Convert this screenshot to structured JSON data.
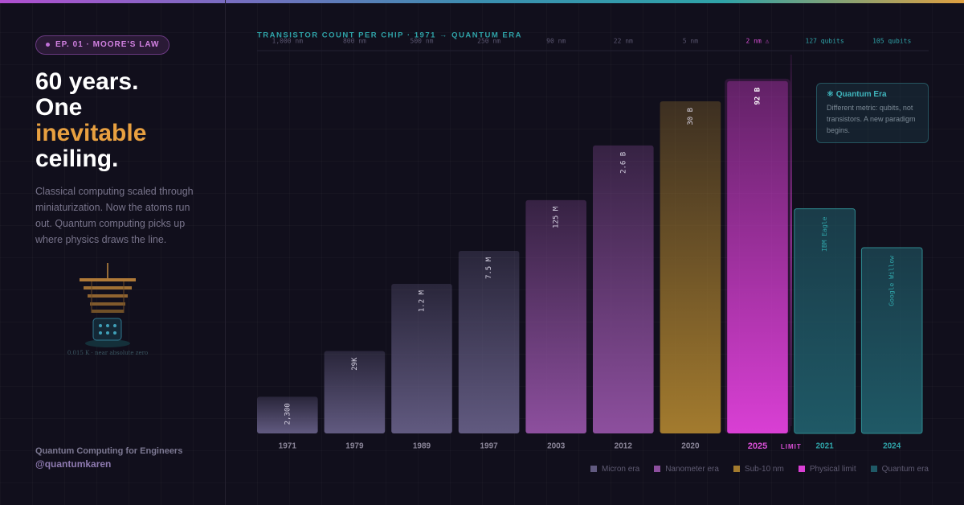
{
  "badge": "EP. 01 · MOORE'S LAW",
  "headline": {
    "line1": "60 years.",
    "line2": "One",
    "highlight": "inevitable",
    "line4": "ceiling."
  },
  "description": "Classical computing scaled through miniaturization. Now the atoms run out. Quantum computing picks up where physics draws the line.",
  "illustration_caption": "0.015 K · near absolute zero",
  "footer": {
    "series": "Quantum Computing for Engineers",
    "handle": "@quantumkaren"
  },
  "chart_data": {
    "type": "bar",
    "title": "TRANSISTOR COUNT PER CHIP · 1971 → QUANTUM ERA",
    "categories": [
      "1971",
      "1979",
      "1989",
      "1997",
      "2003",
      "2012",
      "2020",
      "2025",
      "2021",
      "2024"
    ],
    "nodes": [
      "1,000 nm",
      "800 nm",
      "500 nm",
      "250 nm",
      "90 nm",
      "22 nm",
      "5 nm",
      "2 nm ⚠",
      null,
      null
    ],
    "log_scale": true,
    "ylim": [
      300,
      100000000000
    ],
    "y2lim": [
      0,
      200
    ],
    "limit_label": "LIMIT",
    "annotation": {
      "title": "⚛ Quantum Era",
      "text": "Different metric: qubits, not transistors. A new paradigm begins."
    },
    "series": [
      {
        "name": "Micron era",
        "color": "#615a80",
        "text_color": "#8a8598",
        "values": [
          2300,
          29000,
          1200000,
          7500000,
          null,
          null,
          null,
          null,
          null,
          null
        ],
        "value_labels": [
          "2,300",
          "29K",
          "1.2 M",
          "7.5 M",
          null,
          null,
          null,
          null,
          null,
          null
        ]
      },
      {
        "name": "Nanometer era",
        "color": "#8d4f9e",
        "text_color": "#8a8598",
        "values": [
          null,
          null,
          null,
          null,
          125000000,
          2600000000,
          null,
          null,
          null,
          null
        ],
        "value_labels": [
          null,
          null,
          null,
          null,
          "125 M",
          "2.6 B",
          null,
          null,
          null,
          null
        ]
      },
      {
        "name": "Sub-10 nm",
        "color": "#a37b2e",
        "text_color": "#8a8598",
        "values": [
          null,
          null,
          null,
          null,
          null,
          null,
          30000000000,
          null,
          null,
          null
        ],
        "value_labels": [
          null,
          null,
          null,
          null,
          null,
          null,
          "30 B",
          null,
          null,
          null
        ]
      },
      {
        "name": "Physical limit",
        "color": "#d93fd4",
        "text_color": "#d94fd6",
        "values": [
          null,
          null,
          null,
          null,
          null,
          null,
          null,
          92000000000,
          null,
          null
        ],
        "value_labels": [
          null,
          null,
          null,
          null,
          null,
          null,
          null,
          "92 B",
          null,
          null
        ]
      },
      {
        "name": "Quantum era",
        "color": "#1f5966",
        "text_color": "#2fa3a8",
        "axis": "y2",
        "values": [
          null,
          null,
          null,
          null,
          null,
          null,
          null,
          null,
          127,
          105
        ],
        "value_labels": [
          null,
          null,
          null,
          null,
          null,
          null,
          null,
          null,
          "127 qubits",
          "105 qubits"
        ],
        "bar_labels": [
          null,
          null,
          null,
          null,
          null,
          null,
          null,
          null,
          "IBM Eagle",
          "Google Willow"
        ]
      }
    ]
  }
}
